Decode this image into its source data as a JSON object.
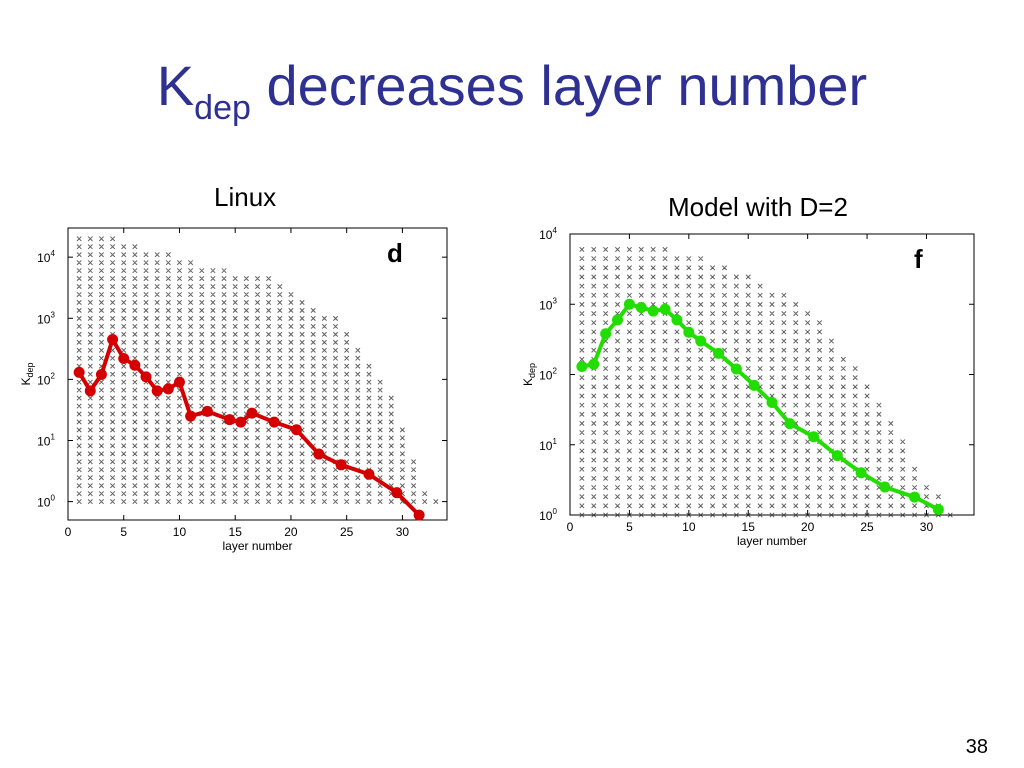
{
  "slide": {
    "title_main": "K",
    "title_sub": "dep",
    "title_rest": " decreases layer number",
    "page_number": "38"
  },
  "colors": {
    "title": "#2e3192",
    "linux": "#d40000",
    "model": "#22dd00"
  },
  "chart_data": [
    {
      "type": "scatter",
      "caption": "Linux",
      "caption_color": "#d40000",
      "panel_letter": "d",
      "xlabel": "layer number",
      "ylabel_main": "K",
      "ylabel_sub": "dep",
      "xlim": [
        0,
        34
      ],
      "ylim": [
        0.5,
        30000
      ],
      "yscale": "log",
      "xticks": [
        0,
        5,
        10,
        15,
        20,
        25,
        30
      ],
      "yticks": [
        {
          "value": 1,
          "base": "10",
          "exp": "0"
        },
        {
          "value": 10,
          "base": "10",
          "exp": "1"
        },
        {
          "value": 100,
          "base": "10",
          "exp": "2"
        },
        {
          "value": 1000,
          "base": "10",
          "exp": "3"
        },
        {
          "value": 10000,
          "base": "10",
          "exp": "4"
        }
      ],
      "grid": false,
      "scatter_columns": [
        {
          "x": 1,
          "max": 25000
        },
        {
          "x": 2,
          "max": 25000
        },
        {
          "x": 3,
          "max": 25000
        },
        {
          "x": 4,
          "max": 20000
        },
        {
          "x": 5,
          "max": 15000
        },
        {
          "x": 6,
          "max": 15000
        },
        {
          "x": 7,
          "max": 14000
        },
        {
          "x": 8,
          "max": 13000
        },
        {
          "x": 9,
          "max": 12000
        },
        {
          "x": 10,
          "max": 10000
        },
        {
          "x": 11,
          "max": 9000
        },
        {
          "x": 12,
          "max": 8000
        },
        {
          "x": 13,
          "max": 7000
        },
        {
          "x": 14,
          "max": 6500
        },
        {
          "x": 15,
          "max": 6000
        },
        {
          "x": 16,
          "max": 6000
        },
        {
          "x": 17,
          "max": 5500
        },
        {
          "x": 18,
          "max": 5000
        },
        {
          "x": 19,
          "max": 4000
        },
        {
          "x": 20,
          "max": 3000
        },
        {
          "x": 21,
          "max": 2000
        },
        {
          "x": 22,
          "max": 1500
        },
        {
          "x": 23,
          "max": 1200
        },
        {
          "x": 24,
          "max": 1000
        },
        {
          "x": 25,
          "max": 600
        },
        {
          "x": 26,
          "max": 400
        },
        {
          "x": 27,
          "max": 200
        },
        {
          "x": 28,
          "max": 100
        },
        {
          "x": 29,
          "max": 50
        },
        {
          "x": 30,
          "max": 20
        },
        {
          "x": 31,
          "max": 5
        },
        {
          "x": 32,
          "max": 1.5
        },
        {
          "x": 33,
          "max": 1
        }
      ],
      "series": [
        {
          "color": "#d40000",
          "x": [
            1,
            2,
            3,
            4,
            5,
            6,
            7,
            8,
            9,
            10,
            11,
            12.5,
            14.5,
            15.5,
            16.5,
            18.5,
            20.5,
            22.5,
            24.5,
            27,
            29.5,
            31.5
          ],
          "y": [
            130,
            65,
            120,
            450,
            220,
            170,
            110,
            65,
            70,
            90,
            25,
            30,
            22,
            20,
            28,
            20,
            15,
            6,
            4,
            2.8,
            1.4,
            0.6
          ]
        }
      ]
    },
    {
      "type": "scatter",
      "caption": "Model with D=2",
      "caption_color": "#22dd00",
      "panel_letter": "f",
      "xlabel": "layer number",
      "ylabel_main": "K",
      "ylabel_sub": "dep",
      "xlim": [
        0,
        34
      ],
      "ylim": [
        1,
        10000
      ],
      "yscale": "log",
      "xticks": [
        0,
        5,
        10,
        15,
        20,
        25,
        30
      ],
      "yticks": [
        {
          "value": 1,
          "base": "10",
          "exp": "0"
        },
        {
          "value": 10,
          "base": "10",
          "exp": "1"
        },
        {
          "value": 100,
          "base": "10",
          "exp": "2"
        },
        {
          "value": 1000,
          "base": "10",
          "exp": "3"
        },
        {
          "value": 10000,
          "base": "10",
          "exp": "4"
        }
      ],
      "grid": false,
      "scatter_columns": [
        {
          "x": 1,
          "max": 8000
        },
        {
          "x": 2,
          "max": 8000
        },
        {
          "x": 3,
          "max": 8000
        },
        {
          "x": 4,
          "max": 8000
        },
        {
          "x": 5,
          "max": 8000
        },
        {
          "x": 6,
          "max": 7500
        },
        {
          "x": 7,
          "max": 7000
        },
        {
          "x": 8,
          "max": 6500
        },
        {
          "x": 9,
          "max": 6000
        },
        {
          "x": 10,
          "max": 5000
        },
        {
          "x": 11,
          "max": 4500
        },
        {
          "x": 12,
          "max": 4000
        },
        {
          "x": 13,
          "max": 3500
        },
        {
          "x": 14,
          "max": 3000
        },
        {
          "x": 15,
          "max": 2500
        },
        {
          "x": 16,
          "max": 2200
        },
        {
          "x": 17,
          "max": 1800
        },
        {
          "x": 18,
          "max": 1400
        },
        {
          "x": 19,
          "max": 1100
        },
        {
          "x": 20,
          "max": 800
        },
        {
          "x": 21,
          "max": 600
        },
        {
          "x": 22,
          "max": 350
        },
        {
          "x": 23,
          "max": 200
        },
        {
          "x": 24,
          "max": 130
        },
        {
          "x": 25,
          "max": 80
        },
        {
          "x": 26,
          "max": 45
        },
        {
          "x": 27,
          "max": 25
        },
        {
          "x": 28,
          "max": 12
        },
        {
          "x": 29,
          "max": 6
        },
        {
          "x": 30,
          "max": 3
        },
        {
          "x": 31,
          "max": 2
        },
        {
          "x": 32,
          "max": 1.2
        }
      ],
      "series": [
        {
          "color": "#22dd00",
          "x": [
            1,
            2,
            3,
            4,
            5,
            6,
            7,
            8,
            9,
            10,
            11,
            12.5,
            14,
            15.5,
            17,
            18.5,
            20.5,
            22.5,
            24.5,
            26.5,
            29,
            31
          ],
          "y": [
            130,
            140,
            380,
            600,
            1000,
            900,
            800,
            850,
            600,
            400,
            300,
            200,
            120,
            70,
            40,
            20,
            13,
            7,
            4,
            2.5,
            1.8,
            1.2
          ]
        }
      ]
    }
  ]
}
